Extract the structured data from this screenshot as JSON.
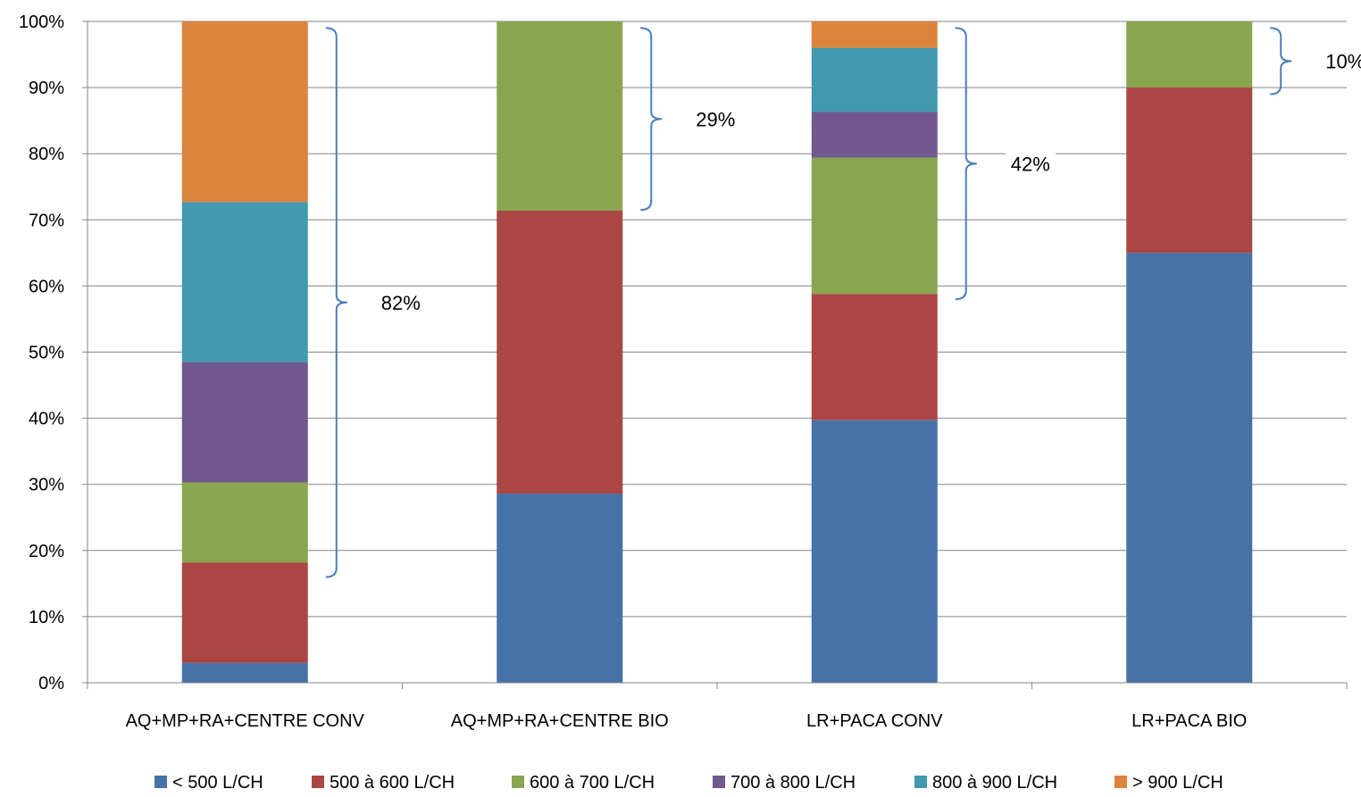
{
  "chart_data": {
    "type": "bar",
    "stacked": true,
    "title": "",
    "xlabel": "",
    "ylabel": "",
    "ylim": [
      0,
      100
    ],
    "yticks": [
      "0%",
      "10%",
      "20%",
      "30%",
      "40%",
      "50%",
      "60%",
      "70%",
      "80%",
      "90%",
      "100%"
    ],
    "grid": true,
    "legend_position": "bottom",
    "categories": [
      "AQ+MP+RA+CENTRE CONV",
      "AQ+MP+RA+CENTRE BIO",
      "LR+PACA CONV",
      "LR+PACA BIO"
    ],
    "series": [
      {
        "name": "< 500 L/CH",
        "color": "#4572A7",
        "values": [
          3,
          28.6,
          39.7,
          65
        ]
      },
      {
        "name": "500 à 600 L/CH",
        "color": "#AA4643",
        "values": [
          15.2,
          42.8,
          19.1,
          25
        ]
      },
      {
        "name": "600 à 700 L/CH",
        "color": "#89A54E",
        "values": [
          12.1,
          28.6,
          20.6,
          10
        ]
      },
      {
        "name": "700 à 800 L/CH",
        "color": "#71588F",
        "values": [
          18.2,
          0,
          6.9,
          0
        ]
      },
      {
        "name": "800 à 900 L/CH",
        "color": "#4198AF",
        "values": [
          24.2,
          0,
          9.7,
          0
        ]
      },
      {
        "name": "> 900 L/CH",
        "color": "#DB843D",
        "values": [
          27.3,
          0,
          4,
          0
        ]
      }
    ],
    "annotations": [
      {
        "label": "82%",
        "category_index": 0,
        "y_from": 16,
        "y_to": 99
      },
      {
        "label": "29%",
        "category_index": 1,
        "y_from": 71.5,
        "y_to": 99
      },
      {
        "label": "42%",
        "category_index": 2,
        "y_from": 58,
        "y_to": 99
      },
      {
        "label": "10%",
        "category_index": 3,
        "y_from": 89,
        "y_to": 99
      }
    ],
    "bracket_color": "#4A7EBB",
    "grid_color": "#868686"
  }
}
